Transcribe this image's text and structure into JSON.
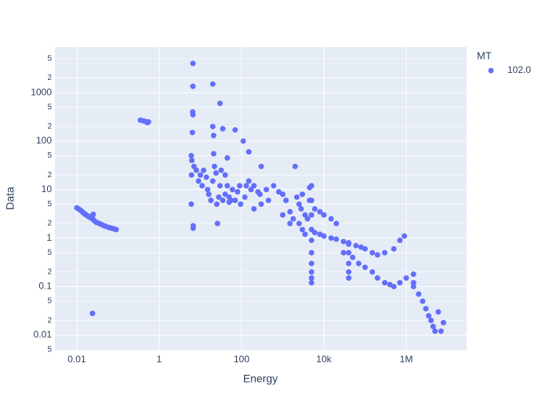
{
  "chart_data": {
    "type": "scatter",
    "x_label": "Energy",
    "y_label": "Data",
    "legend_title": "MT",
    "legend_position": "right",
    "log_x": true,
    "log_y": true,
    "grid": true,
    "xlim": [
      0.00293,
      29300000
    ],
    "ylim": [
      0.0048,
      8700
    ],
    "xticks": [
      0.01,
      1,
      100,
      {
        "value": 10000,
        "label": "10k"
      },
      {
        "value": 1000000,
        "label": "1M"
      }
    ],
    "yticks": [
      {
        "value": 0.005,
        "label": "5"
      },
      0.01,
      {
        "value": 0.02,
        "label": "2"
      },
      {
        "value": 0.05,
        "label": "5"
      },
      0.1,
      {
        "value": 0.2,
        "label": "2"
      },
      {
        "value": 0.5,
        "label": "5"
      },
      1,
      {
        "value": 2,
        "label": "2"
      },
      {
        "value": 5,
        "label": "5"
      },
      10,
      {
        "value": 20,
        "label": "2"
      },
      {
        "value": 50,
        "label": "5"
      },
      100,
      {
        "value": 200,
        "label": "2"
      },
      {
        "value": 500,
        "label": "5"
      },
      1000,
      {
        "value": 2000,
        "label": "2"
      },
      {
        "value": 5000,
        "label": "5"
      }
    ],
    "series": [
      {
        "name": "102.0",
        "color": "#636efa",
        "x": [
          0.01,
          0.011,
          0.012,
          0.013,
          0.014,
          0.015,
          0.016,
          0.018,
          0.02,
          0.022,
          0.025,
          0.028,
          0.03,
          0.035,
          0.04,
          0.045,
          0.05,
          0.06,
          0.07,
          0.08,
          0.09,
          0.025,
          0.024,
          0.024,
          0.35,
          0.42,
          0.48,
          0.52,
          0.55,
          6.6,
          6.6,
          6.5,
          6.6,
          6.4,
          6.0,
          6.2,
          6.1,
          6.0,
          6.7,
          6.7,
          7,
          8,
          9,
          10,
          11,
          12,
          14,
          15,
          16,
          18,
          20,
          20,
          20,
          21,
          21,
          22,
          24,
          25,
          26,
          28,
          30,
          30,
          32,
          35,
          35,
          40,
          40,
          45,
          45,
          50,
          50,
          55,
          60,
          70,
          70,
          80,
          90,
          95,
          110,
          120,
          130,
          150,
          150,
          170,
          200,
          200,
          250,
          280,
          300,
          300,
          400,
          450,
          600,
          800,
          1000,
          1000,
          1200,
          1500,
          1500,
          1800,
          2000,
          2200,
          2500,
          2500,
          2800,
          3000,
          3000,
          3500,
          3500,
          4000,
          4500,
          4500,
          5000,
          5000,
          5000,
          5000,
          5000,
          5000,
          5000,
          5000,
          5000,
          5000,
          6000,
          8000,
          10000,
          15000,
          20000,
          30000,
          40000,
          60000,
          80000,
          100000,
          150000,
          200000,
          300000,
          500000,
          700000,
          900000,
          6000,
          8000,
          10000,
          15000,
          20000,
          40000,
          40000,
          40000,
          40000,
          40000,
          30000,
          50000,
          70000,
          100000,
          150000,
          200000,
          300000,
          400000,
          500000,
          700000,
          1000000,
          1500000,
          1500000,
          1500000,
          2000000,
          2500000,
          3000000,
          3500000,
          4000000,
          4500000,
          5000000,
          6000000,
          7000000,
          8000000
        ],
        "values": [
          4.2,
          4.0,
          3.8,
          3.6,
          3.4,
          3.2,
          3.1,
          2.9,
          2.7,
          2.6,
          2.4,
          2.2,
          2.1,
          2.0,
          1.9,
          1.8,
          1.75,
          1.65,
          1.6,
          1.55,
          1.5,
          3.1,
          2.9,
          0.028,
          270,
          260,
          250,
          240,
          250,
          4000,
          1350,
          400,
          350,
          150,
          50,
          40,
          20,
          5,
          1.8,
          1.6,
          30,
          25,
          15,
          20,
          12,
          25,
          18,
          10,
          8,
          6,
          15,
          1500,
          200,
          130,
          55,
          30,
          22,
          5,
          2,
          7,
          600,
          12,
          25,
          180,
          6,
          8,
          20,
          45,
          12,
          7,
          5.5,
          6,
          10,
          170,
          6,
          9,
          12,
          5,
          100,
          7,
          12,
          60,
          15,
          10,
          12,
          4,
          9,
          8,
          30,
          5,
          10,
          6,
          12,
          9,
          8,
          3,
          6,
          2,
          3.5,
          2.5,
          30,
          7,
          5,
          2,
          4,
          1.5,
          8,
          1.2,
          3,
          2.5,
          6,
          11,
          12,
          6,
          3,
          1.5,
          0.9,
          0.5,
          0.3,
          0.2,
          0.15,
          0.12,
          1.3,
          1.2,
          1.1,
          1.0,
          0.95,
          0.85,
          0.75,
          0.7,
          0.65,
          0.6,
          0.5,
          0.45,
          0.5,
          0.6,
          0.9,
          1.1,
          4,
          3.5,
          3,
          2.5,
          2,
          0.8,
          0.5,
          0.3,
          0.2,
          0.15,
          0.5,
          0.4,
          0.3,
          0.25,
          0.2,
          0.15,
          0.12,
          0.11,
          0.1,
          0.12,
          0.15,
          0.18,
          0.12,
          0.1,
          0.07,
          0.05,
          0.035,
          0.025,
          0.02,
          0.015,
          0.012,
          0.03,
          0.012,
          0.018
        ]
      }
    ]
  }
}
